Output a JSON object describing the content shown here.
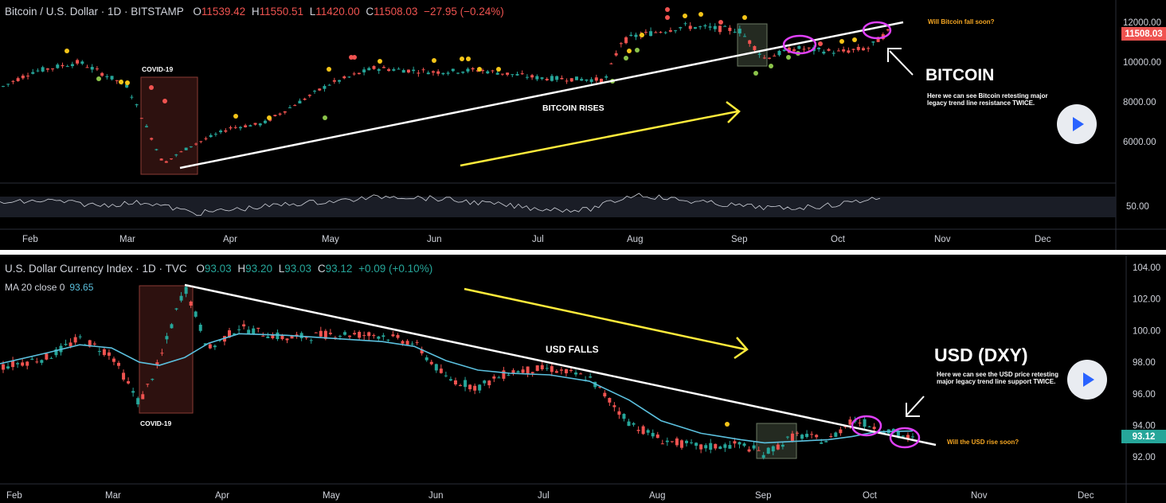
{
  "top": {
    "symbol": "Bitcoin / U.S. Dollar · 1D · BITSTAMP",
    "o_label": "O",
    "o": "11539.42",
    "h_label": "H",
    "h": "11550.51",
    "l_label": "L",
    "l": "11420.00",
    "c_label": "C",
    "c": "11508.03",
    "change": "−27.95 (−0.24%)",
    "price_tag": "11508.03",
    "annotations": {
      "covid": "COVID-19",
      "rises": "BITCOIN RISES",
      "title": "BITCOIN",
      "desc": "Here we can see Bitcoin retesting major legacy trend line resistance TWICE.",
      "question": "Will Bitcoin fall soon?"
    },
    "colors": {
      "up": "#26a69a",
      "down": "#ef5350",
      "tag": "#ef5350"
    }
  },
  "bottom": {
    "symbol": "U.S. Dollar Currency Index · 1D · TVC",
    "o_label": "O",
    "o": "93.03",
    "h_label": "H",
    "h": "93.20",
    "l_label": "L",
    "l": "93.03",
    "c_label": "C",
    "c": "93.12",
    "change": "+0.09 (+0.10%)",
    "ma_label": "MA 20 close 0",
    "ma_value": "93.65",
    "price_tag": "93.12",
    "annotations": {
      "covid": "COVID-19",
      "falls": "USD FALLS",
      "title": "USD (DXY)",
      "desc": "Here we can see the USD price retesting major legacy trend line support TWICE.",
      "question": "Will the USD rise soon?"
    },
    "colors": {
      "up": "#26a69a",
      "down": "#ef5350",
      "ma": "#5bc0de",
      "tag": "#26a69a"
    }
  },
  "chart_data": [
    {
      "type": "candlestick",
      "title": "Bitcoin / U.S. Dollar · 1D · BITSTAMP",
      "xlabel": "",
      "ylabel": "",
      "x_ticks": [
        "Feb",
        "Mar",
        "Apr",
        "May",
        "Jun",
        "Jul",
        "Aug",
        "Sep",
        "Oct",
        "Nov",
        "Dec"
      ],
      "y_ticks": [
        "12000.00",
        "10000.00",
        "8000.00",
        "6000.00"
      ],
      "ylim": [
        4000,
        12800
      ],
      "indicator": {
        "ticks": [
          "50.00"
        ],
        "series": "oscillator"
      },
      "series": [
        {
          "name": "",
          "x": [
            "Feb",
            "Mar",
            "Mar-mid",
            "Apr",
            "May",
            "Jun",
            "Jul",
            "Jul-late",
            "Aug",
            "Aug-mid",
            "Sep",
            "Sep-mid",
            "Oct",
            "Oct-mid"
          ],
          "values": [
            9400,
            8600,
            4900,
            6700,
            8800,
            9500,
            9200,
            9100,
            11300,
            11800,
            10200,
            10700,
            10600,
            11508
          ]
        }
      ],
      "annotations": [
        "COVID-19",
        "BITCOIN RISES",
        "BITCOIN",
        "Here we can see Bitcoin retesting major legacy trend line resistance TWICE.",
        "Will Bitcoin fall soon?"
      ]
    },
    {
      "type": "candlestick",
      "title": "U.S. Dollar Currency Index · 1D · TVC",
      "xlabel": "",
      "ylabel": "",
      "x_ticks": [
        "Feb",
        "Mar",
        "Apr",
        "May",
        "Jun",
        "Jul",
        "Aug",
        "Sep",
        "Oct",
        "Nov",
        "Dec"
      ],
      "y_ticks": [
        "104.00",
        "102.00",
        "100.00",
        "98.00",
        "96.00",
        "94.00",
        "92.00"
      ],
      "ylim": [
        90.3,
        104.8
      ],
      "series": [
        {
          "name": "",
          "x": [
            "Feb",
            "Mar",
            "Mar-mid",
            "Mar-late",
            "Apr",
            "May",
            "Jun",
            "Jul",
            "Aug",
            "Sep",
            "Sep-mid",
            "Oct",
            "Oct-mid"
          ],
          "values": [
            97.8,
            98.0,
            95.2,
            102.8,
            99.6,
            99.8,
            97.2,
            97.4,
            93.0,
            92.3,
            93.4,
            93.9,
            93.12
          ]
        },
        {
          "name": "MA 20 close 0",
          "values": [
            97.9,
            98.9,
            97.7,
            99.2,
            99.8,
            99.0,
            97.6,
            97.0,
            94.0,
            93.0,
            93.1,
            93.6,
            93.65
          ]
        }
      ],
      "annotations": [
        "COVID-19",
        "USD FALLS",
        "USD (DXY)",
        "Here we can see the USD price retesting major legacy trend line support TWICE.",
        "Will the USD rise soon?"
      ]
    }
  ]
}
